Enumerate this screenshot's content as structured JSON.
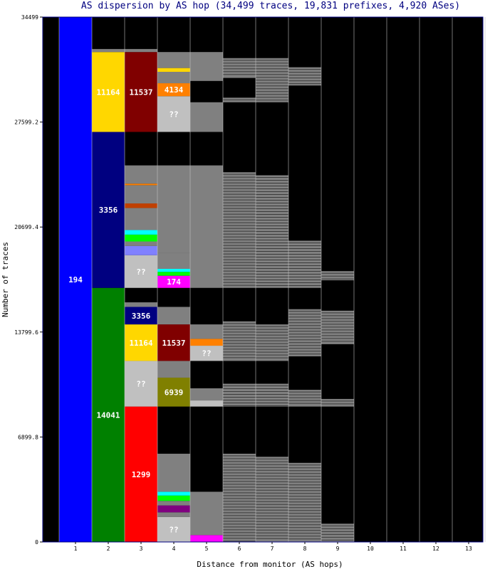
{
  "colors": {
    "background": "#ffffff",
    "plot_background": "#000000",
    "title_text": "#000080",
    "axis_text": "#000000",
    "cell_label_text": "#ffffff",
    "gray_band": "#808080",
    "grid_line": "#c0c0c0",
    "palette": {
      "blue": "#0000ff",
      "navy": "#000080",
      "gold": "#ffd700",
      "maroon": "#800000",
      "green": "#008000",
      "red": "#ff0000",
      "orange": "#ff8000",
      "light_gray": "#c0c0c0",
      "magenta": "#ff00ff",
      "olive": "#808000",
      "cyan": "#00ffff",
      "lime": "#00ff00",
      "periwinkle": "#8080ff",
      "purple": "#800080",
      "brown": "#c04000"
    }
  },
  "chart_data": {
    "type": "bar",
    "title": "AS dispersion by AS hop (34,499 traces, 19,831 prefixes, 4,920 ASes)",
    "xlabel": "Distance from monitor (AS hops)",
    "ylabel": "Number of traces",
    "categories": [
      "1",
      "2",
      "3",
      "4",
      "5",
      "6",
      "7",
      "8",
      "9",
      "10",
      "11",
      "12",
      "13"
    ],
    "ylim": [
      0,
      34499
    ],
    "ytick_labels": [
      "0",
      "6899.8",
      "13799.6",
      "20699.4",
      "27599.2",
      "34499"
    ],
    "ytick_values": [
      0,
      6899.8,
      13799.6,
      20699.4,
      27599.2,
      34499
    ],
    "segments": [
      {
        "hop": 1,
        "y0": 0,
        "y1": 34499,
        "color": "blue",
        "label": "194"
      },
      {
        "hop": 2,
        "y0": 0,
        "y1": 16700,
        "color": "green",
        "label": "14041"
      },
      {
        "hop": 2,
        "y0": 16700,
        "y1": 26950,
        "color": "navy",
        "label": "3356"
      },
      {
        "hop": 2,
        "y0": 26950,
        "y1": 32200,
        "color": "gold",
        "label": "11164"
      },
      {
        "hop": 2,
        "y0": 32200,
        "y1": 32400,
        "color": "gray_band",
        "label": ""
      },
      {
        "hop": 3,
        "y0": 0,
        "y1": 8900,
        "color": "red",
        "label": "1299"
      },
      {
        "hop": 3,
        "y0": 8900,
        "y1": 11900,
        "color": "light_gray",
        "label": "??"
      },
      {
        "hop": 3,
        "y0": 11900,
        "y1": 14300,
        "color": "gold",
        "label": "11164"
      },
      {
        "hop": 3,
        "y0": 14300,
        "y1": 15450,
        "color": "navy",
        "label": "3356"
      },
      {
        "hop": 3,
        "y0": 15450,
        "y1": 15750,
        "color": "gray_band",
        "label": ""
      },
      {
        "hop": 3,
        "y0": 16700,
        "y1": 18850,
        "color": "light_gray",
        "label": "??"
      },
      {
        "hop": 3,
        "y0": 18850,
        "y1": 19450,
        "color": "periwinkle",
        "label": ""
      },
      {
        "hop": 3,
        "y0": 19450,
        "y1": 19750,
        "color": "gray_band",
        "label": ""
      },
      {
        "hop": 3,
        "y0": 19750,
        "y1": 20200,
        "color": "lime",
        "label": ""
      },
      {
        "hop": 3,
        "y0": 20200,
        "y1": 20500,
        "color": "cyan",
        "label": ""
      },
      {
        "hop": 3,
        "y0": 20500,
        "y1": 21950,
        "color": "gray_band",
        "label": ""
      },
      {
        "hop": 3,
        "y0": 21950,
        "y1": 22250,
        "color": "brown",
        "label": ""
      },
      {
        "hop": 3,
        "y0": 22250,
        "y1": 23450,
        "color": "gray_band",
        "label": ""
      },
      {
        "hop": 3,
        "y0": 23450,
        "y1": 23550,
        "color": "orange",
        "label": ""
      },
      {
        "hop": 3,
        "y0": 23550,
        "y1": 24750,
        "color": "gray_band",
        "label": ""
      },
      {
        "hop": 3,
        "y0": 26950,
        "y1": 32200,
        "color": "maroon",
        "label": "11537"
      },
      {
        "hop": 3,
        "y0": 32200,
        "y1": 32400,
        "color": "gray_band",
        "label": ""
      },
      {
        "hop": 4,
        "y0": 0,
        "y1": 1650,
        "color": "light_gray",
        "label": "??"
      },
      {
        "hop": 4,
        "y0": 1650,
        "y1": 1950,
        "color": "gray_band",
        "label": ""
      },
      {
        "hop": 4,
        "y0": 1950,
        "y1": 2400,
        "color": "purple",
        "label": ""
      },
      {
        "hop": 4,
        "y0": 2400,
        "y1": 2700,
        "color": "gray_band",
        "label": ""
      },
      {
        "hop": 4,
        "y0": 2700,
        "y1": 3050,
        "color": "lime",
        "label": ""
      },
      {
        "hop": 4,
        "y0": 3050,
        "y1": 3300,
        "color": "cyan",
        "label": ""
      },
      {
        "hop": 4,
        "y0": 3300,
        "y1": 5800,
        "color": "gray_band",
        "label": ""
      },
      {
        "hop": 4,
        "y0": 8900,
        "y1": 10800,
        "color": "olive",
        "label": "6939"
      },
      {
        "hop": 4,
        "y0": 10800,
        "y1": 11900,
        "color": "gray_band",
        "label": ""
      },
      {
        "hop": 4,
        "y0": 11900,
        "y1": 14300,
        "color": "maroon",
        "label": "11537"
      },
      {
        "hop": 4,
        "y0": 14300,
        "y1": 15450,
        "color": "gray_band",
        "label": ""
      },
      {
        "hop": 4,
        "y0": 16700,
        "y1": 17500,
        "color": "magenta",
        "label": "174"
      },
      {
        "hop": 4,
        "y0": 17500,
        "y1": 17750,
        "color": "lime",
        "label": ""
      },
      {
        "hop": 4,
        "y0": 17750,
        "y1": 17950,
        "color": "cyan",
        "label": ""
      },
      {
        "hop": 4,
        "y0": 17950,
        "y1": 19000,
        "color": "gray_band",
        "label": ""
      },
      {
        "hop": 4,
        "y0": 19000,
        "y1": 24750,
        "color": "gray_band",
        "label": ""
      },
      {
        "hop": 4,
        "y0": 26950,
        "y1": 29300,
        "color": "light_gray",
        "label": "??"
      },
      {
        "hop": 4,
        "y0": 29300,
        "y1": 30150,
        "color": "orange",
        "label": "4134"
      },
      {
        "hop": 4,
        "y0": 30150,
        "y1": 30900,
        "color": "gray_band",
        "label": ""
      },
      {
        "hop": 4,
        "y0": 30900,
        "y1": 31150,
        "color": "gold",
        "label": ""
      },
      {
        "hop": 4,
        "y0": 31150,
        "y1": 32200,
        "color": "gray_band",
        "label": ""
      },
      {
        "hop": 5,
        "y0": 0,
        "y1": 450,
        "color": "magenta",
        "label": ""
      },
      {
        "hop": 5,
        "y0": 450,
        "y1": 3300,
        "color": "gray_band",
        "label": ""
      },
      {
        "hop": 5,
        "y0": 8900,
        "y1": 9300,
        "color": "light_gray",
        "label": ""
      },
      {
        "hop": 5,
        "y0": 9300,
        "y1": 10100,
        "color": "gray_band",
        "label": ""
      },
      {
        "hop": 5,
        "y0": 11900,
        "y1": 12900,
        "color": "light_gray",
        "label": "??"
      },
      {
        "hop": 5,
        "y0": 12900,
        "y1": 13350,
        "color": "orange",
        "label": ""
      },
      {
        "hop": 5,
        "y0": 13350,
        "y1": 14300,
        "color": "gray_band",
        "label": ""
      },
      {
        "hop": 5,
        "y0": 16700,
        "y1": 24750,
        "color": "gray_band",
        "label": ""
      },
      {
        "hop": 5,
        "y0": 26950,
        "y1": 28900,
        "color": "gray_band",
        "label": ""
      },
      {
        "hop": 5,
        "y0": 30300,
        "y1": 32200,
        "color": "gray_band",
        "label": ""
      }
    ],
    "gray_blocks": [
      {
        "hop": 6,
        "y0": 0,
        "y1": 5800
      },
      {
        "hop": 6,
        "y0": 8900,
        "y1": 10400
      },
      {
        "hop": 6,
        "y0": 11900,
        "y1": 14500
      },
      {
        "hop": 6,
        "y0": 16700,
        "y1": 24300
      },
      {
        "hop": 6,
        "y0": 28900,
        "y1": 29200
      },
      {
        "hop": 6,
        "y0": 30500,
        "y1": 31800
      },
      {
        "hop": 7,
        "y0": 0,
        "y1": 5600
      },
      {
        "hop": 7,
        "y0": 8900,
        "y1": 10400
      },
      {
        "hop": 7,
        "y0": 11900,
        "y1": 14300
      },
      {
        "hop": 7,
        "y0": 16700,
        "y1": 24100
      },
      {
        "hop": 7,
        "y0": 28900,
        "y1": 31800
      },
      {
        "hop": 8,
        "y0": 0,
        "y1": 5200
      },
      {
        "hop": 8,
        "y0": 8900,
        "y1": 10000
      },
      {
        "hop": 8,
        "y0": 12200,
        "y1": 15300
      },
      {
        "hop": 8,
        "y0": 16700,
        "y1": 19800
      },
      {
        "hop": 8,
        "y0": 30000,
        "y1": 31200
      },
      {
        "hop": 9,
        "y0": 0,
        "y1": 1200
      },
      {
        "hop": 9,
        "y0": 8900,
        "y1": 9400
      },
      {
        "hop": 9,
        "y0": 13000,
        "y1": 15200
      },
      {
        "hop": 9,
        "y0": 17200,
        "y1": 17800
      }
    ],
    "bar_labels_on_top": [
      "194",
      "14041",
      "3356",
      "11164",
      "1299",
      "??",
      "11164",
      "3356",
      "11537",
      "6939",
      "11537",
      "174",
      "??",
      "4134",
      "??",
      "??"
    ]
  }
}
